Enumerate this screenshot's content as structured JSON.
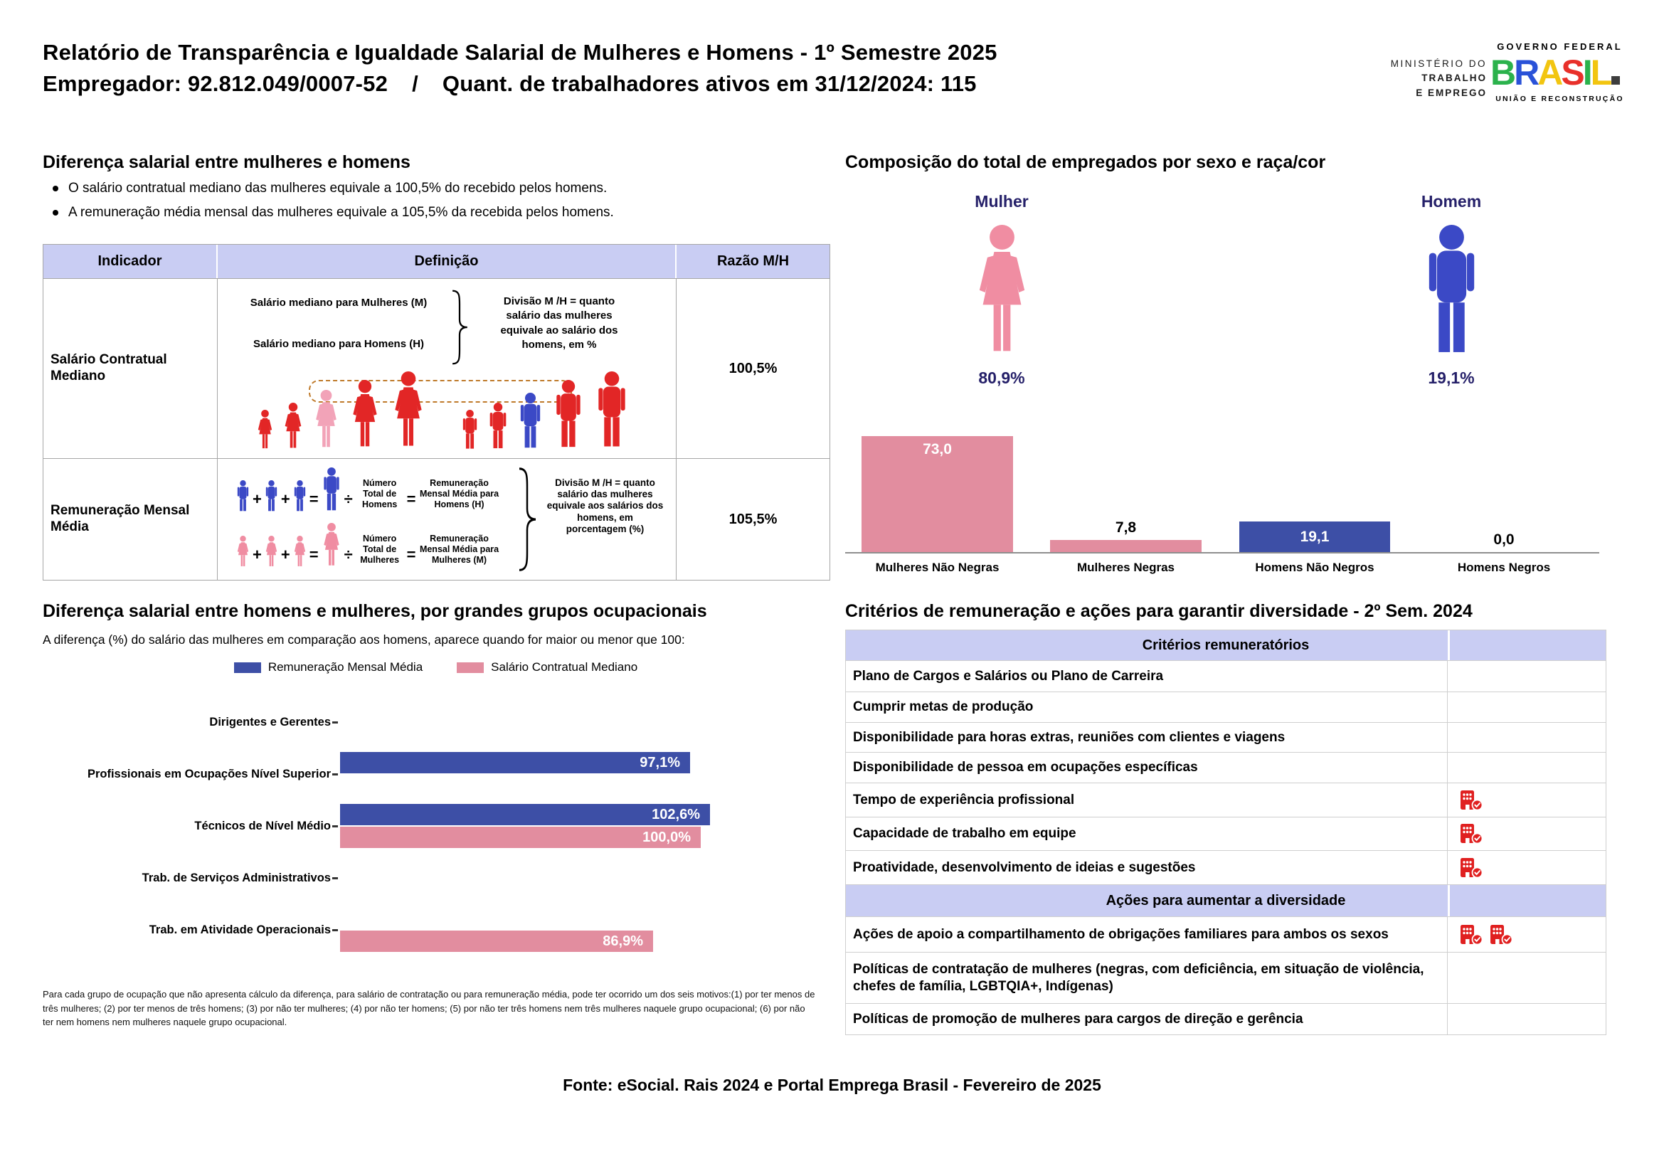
{
  "page_title": "Relatório de Transparência e Igualdade Salarial de Mulheres e Homens - 1º Semestre 2025",
  "header": {
    "employer": "Empregador: 92.812.049/0007-52",
    "separator": "/",
    "active_workers": "Quant. de trabalhadores ativos em 31/12/2024: 115",
    "ministry_line1": "MINISTÉRIO DO",
    "ministry_line2": "TRABALHO",
    "ministry_line3": "E EMPREGO",
    "gov_top": "GOVERNO FEDERAL",
    "gov_brand": "BRASIL",
    "gov_bottom": "UNIÃO E RECONSTRUÇÃO"
  },
  "salary_diff": {
    "title": "Diferença salarial entre mulheres e homens",
    "bullets": [
      "O salário contratual mediano das mulheres equivale a 100,5% do recebido pelos homens.",
      "A remuneração média mensal das mulheres equivale a 105,5% da recebida pelos homens."
    ],
    "table": {
      "headers": [
        "Indicador",
        "Definição",
        "Razão M/H"
      ],
      "rows": [
        {
          "indicator": "Salário Contratual Mediano",
          "ratio": "100,5%"
        },
        {
          "indicator": "Remuneração Mensal Média",
          "ratio": "105,5%"
        }
      ]
    },
    "median_diagram": {
      "women_label": "Salário mediano para Mulheres (M)",
      "men_label": "Salário mediano para Homens (H)",
      "note": "Divisão M /H = quanto salário das mulheres equivale ao salário dos homens, em %",
      "figures_women": [
        {
          "sex": "f",
          "h": 58,
          "c": "red"
        },
        {
          "sex": "f",
          "h": 68,
          "c": "red"
        },
        {
          "sex": "f",
          "h": 86,
          "c": "pale_pink"
        },
        {
          "sex": "f",
          "h": 100,
          "c": "red"
        },
        {
          "sex": "f",
          "h": 112,
          "c": "red"
        }
      ],
      "figures_men": [
        {
          "sex": "m",
          "h": 58,
          "c": "red"
        },
        {
          "sex": "m",
          "h": 68,
          "c": "red"
        },
        {
          "sex": "m",
          "h": 82,
          "c": "blue_icon"
        },
        {
          "sex": "m",
          "h": 100,
          "c": "red"
        },
        {
          "sex": "m",
          "h": 112,
          "c": "red"
        }
      ]
    },
    "mean_diagram": {
      "plus": "+",
      "equals": "=",
      "divide": "÷",
      "men_count_label": "Número Total de Homens",
      "men_avg_label": "Remuneração Mensal Média para Homens (H)",
      "women_count_label": "Número Total de Mulheres",
      "women_avg_label": "Remuneração Mensal Média para Mulheres (M)",
      "note": "Divisão M /H = quanto salário das mulheres equivale aos salários dos homens, em porcentagem (%)"
    }
  },
  "composition": {
    "female_label": "Mulher",
    "male_label": "Homem",
    "female_pct": "80,9%",
    "male_pct": "19,1%"
  },
  "criteria": {
    "title": "Critérios de remuneração e ações para garantir diversidade - 2º Sem. 2024",
    "remuneration_header": "Critérios remuneratórios",
    "remuneration_rows": [
      {
        "label": "Plano de Cargos e Salários ou Plano de Carreira",
        "checks": 0
      },
      {
        "label": "Cumprir metas de produção",
        "checks": 0
      },
      {
        "label": "Disponibilidade para horas extras, reuniões com clientes e viagens",
        "checks": 0
      },
      {
        "label": "Disponibilidade de pessoa em ocupações específicas",
        "checks": 0
      },
      {
        "label": "Tempo de experiência profissional",
        "checks": 1
      },
      {
        "label": "Capacidade de trabalho em equipe",
        "checks": 1
      },
      {
        "label": "Proatividade, desenvolvimento de ideias e sugestões",
        "checks": 1
      }
    ],
    "diversity_header": "Ações para aumentar a diversidade",
    "diversity_rows": [
      {
        "label": "Ações de apoio a compartilhamento de obrigações familiares para ambos os sexos",
        "checks": 2
      },
      {
        "label": "Políticas de contratação de mulheres (negras, com deficiência, em situação de violência, chefes de família, LGBTQIA+, Indígenas)",
        "checks": 0
      },
      {
        "label": "Políticas de promoção de mulheres para cargos de direção e gerência",
        "checks": 0
      }
    ]
  },
  "footer": {
    "source": "Fonte: eSocial. Rais 2024 e Portal Emprega Brasil - Fevereiro de 2025"
  },
  "colors": {
    "lavender": "#c9cdf3",
    "red": "#e22626",
    "pale_pink": "#f2a3b8",
    "pink_icon": "#f08da2",
    "blue_icon": "#3b49c6",
    "pink_bar": "#e28d9f",
    "blue_bar": "#3d4fa6",
    "navy": "#252069",
    "icon_red": "#e02020",
    "dashed_orange": "#bf7a2a"
  },
  "chart_data": [
    {
      "id": "composition_by_sex_race",
      "type": "bar",
      "title": "Composição do total de empregados por sexo e raça/cor",
      "categories": [
        "Mulheres Não Negras",
        "Mulheres Negras",
        "Homens Não Negros",
        "Homens Negros"
      ],
      "values": [
        73.0,
        7.8,
        19.1,
        0.0
      ],
      "value_labels": [
        "73,0",
        "7,8",
        "19,1",
        "0,0"
      ],
      "bar_colors": [
        "pink",
        "pink",
        "blue",
        "none"
      ],
      "label_inside": [
        true,
        false,
        true,
        false
      ],
      "ylim": [
        0,
        80
      ],
      "grid": false,
      "summary": {
        "mulher_pct": 80.9,
        "homem_pct": 19.1
      }
    },
    {
      "id": "salary_ratio_by_occupation",
      "type": "bar-horizontal",
      "title": "Diferença salarial entre homens e mulheres, por grandes grupos ocupacionais",
      "subtitle": "A diferença (%) do salário das mulheres em comparação aos homens, aparece quando for maior ou menor que 100:",
      "categories": [
        "Dirigentes e Gerentes",
        "Profissionais em Ocupações Nível Superior",
        "Técnicos de Nível Médio",
        "Trab. de Serviços Administrativos",
        "Trab. em Atividade Operacionais"
      ],
      "series": [
        {
          "name": "Remuneração Mensal Média",
          "color_key": "blue_bar",
          "values": [
            null,
            97.1,
            102.6,
            null,
            null
          ],
          "value_labels": [
            "",
            "97,1%",
            "102,6%",
            "",
            ""
          ]
        },
        {
          "name": "Salário Contratual Mediano",
          "color_key": "pink_bar",
          "values": [
            null,
            null,
            100.0,
            null,
            86.9
          ],
          "value_labels": [
            "",
            "",
            "100,0%",
            "",
            "86,9%"
          ]
        }
      ],
      "xlim": [
        0,
        110
      ],
      "legend_position": "top",
      "footnote": "Para cada grupo de ocupação que não apresenta cálculo da diferença, para salário de contratação ou para remuneração média, pode ter ocorrido um dos seis motivos:(1) por ter menos de três mulheres; (2) por ter menos de três homens; (3) por não ter mulheres; (4) por não ter homens; (5) por não ter três homens nem três mulheres naquele grupo ocupacional; (6) por não ter nem homens nem mulheres naquele grupo ocupacional."
    }
  ]
}
